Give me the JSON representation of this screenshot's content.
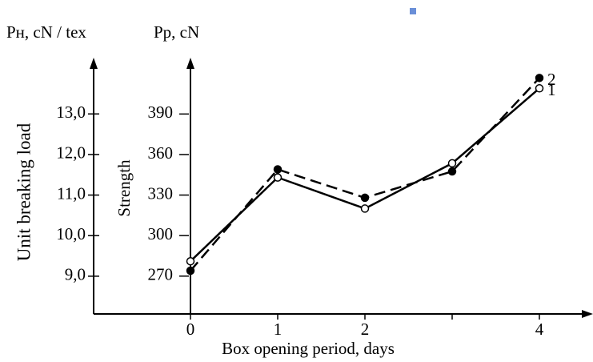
{
  "chart_data": {
    "type": "line",
    "y_axis_symbol": "Pн, cN / tex",
    "y2_axis_symbol": "Pр, cN",
    "ylabel": "Unit breaking load",
    "y2label": "Strength",
    "xlabel": "Box opening period, days",
    "categories": [
      "0",
      "1",
      "2",
      null,
      "4"
    ],
    "ylim": [
      8.07,
      14.13
    ],
    "yticks": [
      {
        "value": 9,
        "label": "9,0"
      },
      {
        "value": 10,
        "label": "10,0"
      },
      {
        "value": 11,
        "label": "11,0"
      },
      {
        "value": 12,
        "label": "12,0"
      },
      {
        "value": 13,
        "label": "13,0"
      }
    ],
    "y2lim": [
      242,
      424
    ],
    "y2ticks": [
      270,
      300,
      330,
      360,
      390
    ],
    "series": [
      {
        "name": "1",
        "color": "#000000",
        "axis": "y2",
        "dash": "solid",
        "marker": "open",
        "values": [
          281,
          343,
          320,
          353.5,
          409
        ]
      },
      {
        "name": "2",
        "color": "#000000",
        "axis": "y2",
        "dash": "dashed",
        "marker": "filled",
        "values": [
          274,
          349,
          328,
          347.5,
          416.7
        ]
      }
    ]
  }
}
